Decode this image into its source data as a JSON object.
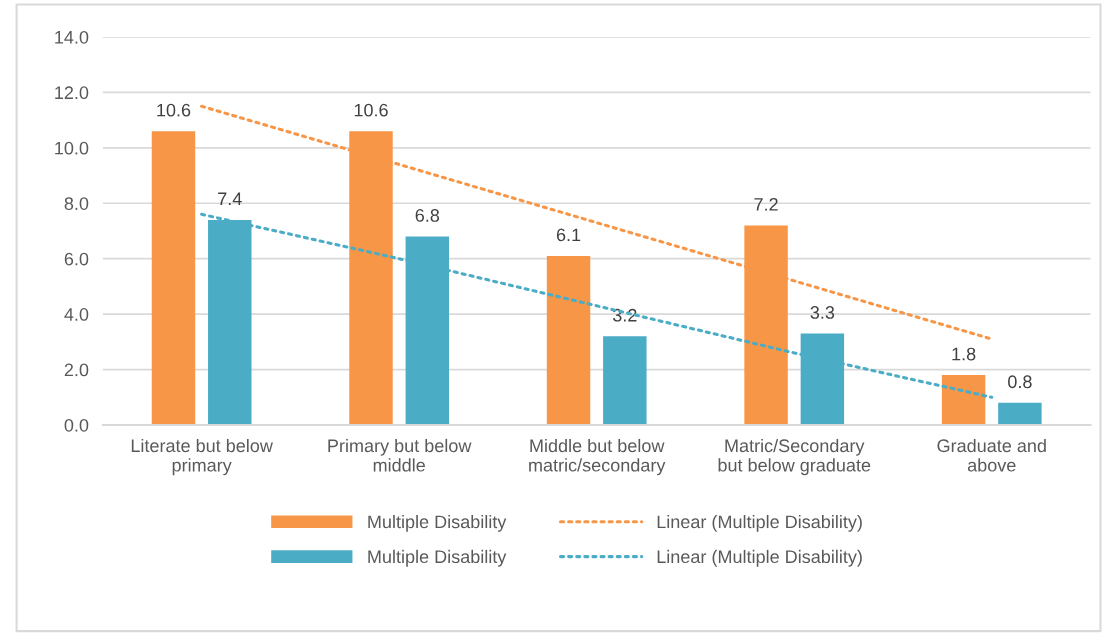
{
  "chart_data": {
    "type": "bar",
    "categories": [
      "Literate but below\nprimary",
      "Primary but below\nmiddle",
      "Middle but below\nmatric/secondary",
      "Matric/Secondary\nbut below graduate",
      "Graduate and\nabove"
    ],
    "series": [
      {
        "name": "Multiple Disability",
        "color": "#f79646",
        "values": [
          10.6,
          10.6,
          6.1,
          7.2,
          1.8
        ],
        "value_labels": [
          "10.6",
          "10.6",
          "6.1",
          "7.2",
          "1.8"
        ]
      },
      {
        "name": "Multiple Disability",
        "color": "#4bacc6",
        "values": [
          7.4,
          6.8,
          3.2,
          3.3,
          0.8
        ],
        "value_labels": [
          "7.4",
          "6.8",
          "3.2",
          "3.3",
          "0.8"
        ]
      },
      {
        "name": "Linear (Multiple Disability)",
        "type": "line",
        "line_style": "dotted",
        "color": "#f79646",
        "values": [
          11.5,
          9.4,
          7.3,
          5.2,
          3.1
        ]
      },
      {
        "name": "Linear (Multiple Disability)",
        "type": "line",
        "line_style": "dotted",
        "color": "#4bacc6",
        "values": [
          7.6,
          6.0,
          4.3,
          2.6,
          1.0
        ]
      }
    ],
    "ylim": [
      0,
      14
    ],
    "yticks": [
      {
        "value": 0,
        "label": "0.0"
      },
      {
        "value": 2,
        "label": "2.0"
      },
      {
        "value": 4,
        "label": "4.0"
      },
      {
        "value": 6,
        "label": "6.0"
      },
      {
        "value": 8,
        "label": "8.0"
      },
      {
        "value": 10,
        "label": "10.0"
      },
      {
        "value": 12,
        "label": "12.0"
      },
      {
        "value": 14,
        "label": "14.0"
      }
    ],
    "grid": "y",
    "legend": "bottom"
  }
}
